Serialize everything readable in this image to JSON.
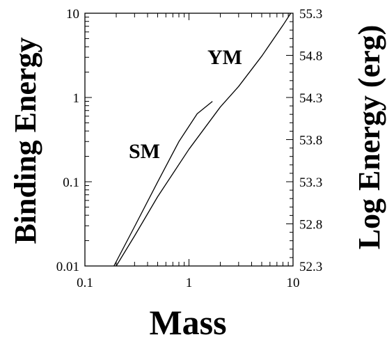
{
  "chart_data": {
    "type": "line",
    "xlabel": "Mass",
    "ylabel": "Binding Energy",
    "y2label": "Log Energy (erg)",
    "xscale": "log",
    "yscale": "log",
    "xlim": [
      0.1,
      10
    ],
    "ylim": [
      0.01,
      10
    ],
    "y2lim": [
      52.3,
      55.3
    ],
    "x_ticks": [
      "0.1",
      "1",
      "10"
    ],
    "y_ticks": [
      "0.01",
      "0.1",
      "1",
      "10"
    ],
    "y2_ticks": [
      "52.3",
      "52.8",
      "53.3",
      "53.8",
      "54.3",
      "54.8",
      "55.3"
    ],
    "grid": false,
    "series": [
      {
        "name": "SM",
        "x": [
          0.19,
          0.3,
          0.5,
          0.8,
          1.2,
          1.68
        ],
        "y": [
          0.01,
          0.0293,
          0.0995,
          0.299,
          0.641,
          0.899
        ]
      },
      {
        "name": "YM",
        "x": [
          0.2,
          0.3,
          0.5,
          1.0,
          2.0,
          3.0,
          5.0,
          8.0,
          9.5
        ],
        "y": [
          0.01,
          0.0227,
          0.0664,
          0.243,
          0.77,
          1.35,
          3.09,
          7.2,
          10.0
        ]
      }
    ]
  }
}
